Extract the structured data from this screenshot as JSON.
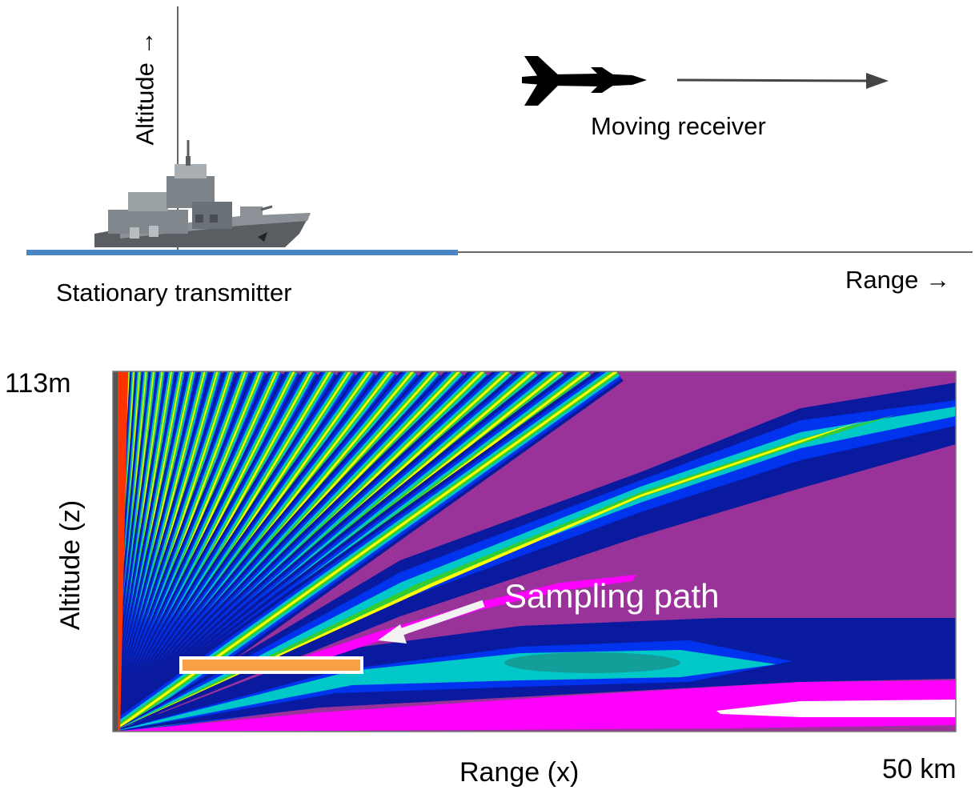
{
  "top": {
    "altitude_label": "Altitude →",
    "range_label": "Range →",
    "transmitter_label": "Stationary transmitter",
    "receiver_label": "Moving receiver",
    "ship_icon": "warship-icon",
    "aircraft_icon": "aircraft-icon"
  },
  "plot": {
    "max_altitude_label": "113m",
    "ylabel": "Altitude (z)",
    "xlabel": "Range (x)",
    "max_range_label": "50 km",
    "annotation": "Sampling path",
    "colors": {
      "background": "#993399",
      "navy": "#0a1a9e",
      "blue": "#0033ee",
      "cyan": "#00c8c8",
      "green": "#33cc33",
      "yellow": "#ffff00",
      "magenta": "#ff00ff",
      "white": "#ffffff",
      "sampling_bar": "#f7a044"
    }
  }
}
